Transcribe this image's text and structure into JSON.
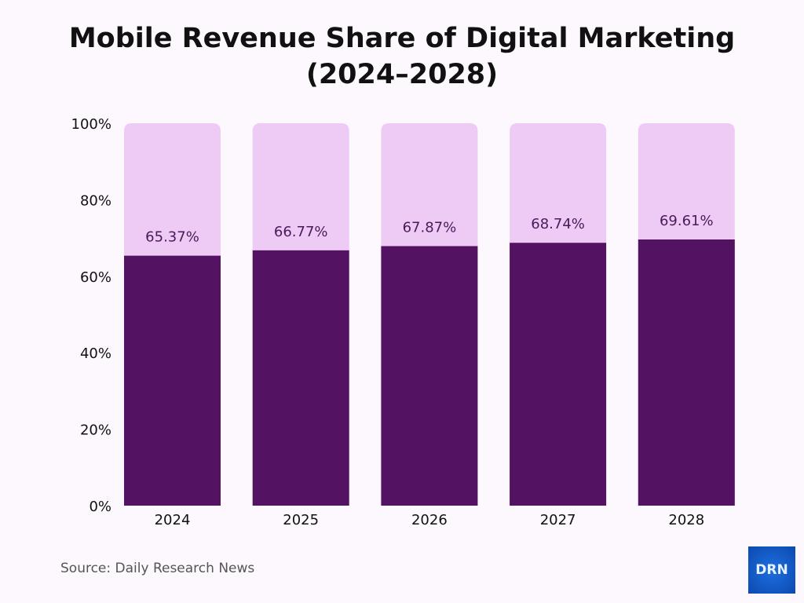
{
  "chart_data": {
    "type": "bar",
    "stacked": true,
    "title": "Mobile Revenue Share of Digital Marketing (2024–2028)",
    "title_lines": [
      "Mobile Revenue Share of Digital Marketing",
      "(2024–2028)"
    ],
    "categories": [
      "2024",
      "2025",
      "2026",
      "2027",
      "2028"
    ],
    "values": [
      65.37,
      66.77,
      67.87,
      68.74,
      69.61
    ],
    "data_labels": [
      "65.37%",
      "66.77%",
      "67.87%",
      "68.74%",
      "69.61%"
    ],
    "total": 100,
    "ylim": [
      0,
      100
    ],
    "yticks": [
      0,
      20,
      40,
      60,
      80,
      100
    ],
    "ytick_labels": [
      "0%",
      "20%",
      "40%",
      "60%",
      "80%",
      "100%"
    ],
    "xlabel": "",
    "ylabel": "",
    "grid": false,
    "colors": {
      "value": "#541262",
      "remainder": "#eecbf5",
      "label": "#4a1a5a",
      "background": "#fcf8fd"
    }
  },
  "source": "Source: Daily Research News",
  "logo": {
    "text": "DRN",
    "color": "#1559c9"
  }
}
